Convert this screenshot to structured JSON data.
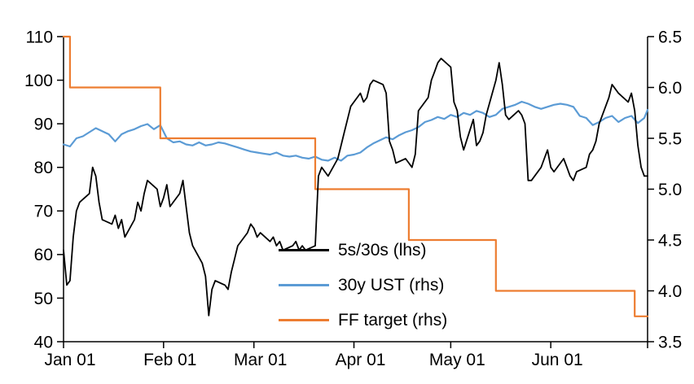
{
  "chart_data": {
    "type": "line",
    "title": "",
    "grid": false,
    "legend_position": "inside-lower-middle",
    "x_axis": {
      "unit": "day-of-year (Jan 01 = 0)",
      "domain_days": [
        0,
        181
      ],
      "ticks": [
        {
          "day": 0,
          "label": "Jan 01"
        },
        {
          "day": 31,
          "label": "Feb 01"
        },
        {
          "day": 59,
          "label": "Mar 01"
        },
        {
          "day": 90,
          "label": "Apr 01"
        },
        {
          "day": 120,
          "label": "May 01"
        },
        {
          "day": 151,
          "label": "Jun 01"
        }
      ],
      "end_tick_day": 181
    },
    "left_axis": {
      "range": [
        40,
        110
      ],
      "ticks": [
        {
          "v": 40,
          "label": "40"
        },
        {
          "v": 50,
          "label": "50"
        },
        {
          "v": 60,
          "label": "60"
        },
        {
          "v": 70,
          "label": "70"
        },
        {
          "v": 80,
          "label": "80"
        },
        {
          "v": 90,
          "label": "90"
        },
        {
          "v": 100,
          "label": "100"
        },
        {
          "v": 110,
          "label": "110"
        }
      ]
    },
    "right_axis": {
      "range": [
        3.5,
        6.5
      ],
      "ticks": [
        {
          "v": 3.5,
          "label": "3.5"
        },
        {
          "v": 4.0,
          "label": "4.0"
        },
        {
          "v": 4.5,
          "label": "4.5"
        },
        {
          "v": 5.0,
          "label": "5.0"
        },
        {
          "v": 5.5,
          "label": "5.5"
        },
        {
          "v": 6.0,
          "label": "6.0"
        },
        {
          "v": 6.5,
          "label": "6.5"
        }
      ]
    },
    "series": [
      {
        "name": "5s/30s (lhs)",
        "axis": "left",
        "color": "#000000",
        "stroke_width": 1.8,
        "points": [
          [
            0,
            61
          ],
          [
            1,
            53
          ],
          [
            2,
            54
          ],
          [
            3,
            64
          ],
          [
            4,
            70
          ],
          [
            5,
            72
          ],
          [
            8,
            74
          ],
          [
            9,
            80
          ],
          [
            10,
            78
          ],
          [
            11,
            72
          ],
          [
            12,
            68
          ],
          [
            15,
            67
          ],
          [
            16,
            69
          ],
          [
            17,
            66
          ],
          [
            18,
            68
          ],
          [
            19,
            64
          ],
          [
            22,
            68
          ],
          [
            23,
            72
          ],
          [
            24,
            70
          ],
          [
            25,
            74
          ],
          [
            26,
            77
          ],
          [
            29,
            75
          ],
          [
            30,
            71
          ],
          [
            31,
            73
          ],
          [
            32,
            76
          ],
          [
            33,
            71
          ],
          [
            36,
            74
          ],
          [
            37,
            77
          ],
          [
            38,
            71
          ],
          [
            39,
            65
          ],
          [
            40,
            62
          ],
          [
            43,
            58
          ],
          [
            44,
            55
          ],
          [
            45,
            46
          ],
          [
            46,
            52
          ],
          [
            47,
            54
          ],
          [
            50,
            53
          ],
          [
            51,
            52
          ],
          [
            52,
            56
          ],
          [
            53,
            59
          ],
          [
            54,
            62
          ],
          [
            57,
            65
          ],
          [
            58,
            67
          ],
          [
            59,
            66
          ],
          [
            60,
            64
          ],
          [
            61,
            65
          ],
          [
            64,
            63
          ],
          [
            65,
            64
          ],
          [
            66,
            62
          ],
          [
            67,
            63
          ],
          [
            68,
            61
          ],
          [
            71,
            62
          ],
          [
            72,
            63
          ],
          [
            73,
            61
          ],
          [
            74,
            62
          ],
          [
            75,
            61
          ],
          [
            78,
            62
          ],
          [
            79,
            78
          ],
          [
            80,
            80
          ],
          [
            81,
            79
          ],
          [
            82,
            78
          ],
          [
            85,
            82
          ],
          [
            86,
            85
          ],
          [
            87,
            88
          ],
          [
            88,
            91
          ],
          [
            89,
            94
          ],
          [
            92,
            97
          ],
          [
            93,
            95
          ],
          [
            94,
            96
          ],
          [
            95,
            99
          ],
          [
            96,
            100
          ],
          [
            99,
            99
          ],
          [
            100,
            97
          ],
          [
            101,
            86
          ],
          [
            102,
            84
          ],
          [
            103,
            81
          ],
          [
            106,
            82
          ],
          [
            107,
            81
          ],
          [
            108,
            80
          ],
          [
            109,
            83
          ],
          [
            110,
            93
          ],
          [
            113,
            96
          ],
          [
            114,
            100
          ],
          [
            115,
            102
          ],
          [
            116,
            104
          ],
          [
            117,
            105
          ],
          [
            120,
            103
          ],
          [
            121,
            95
          ],
          [
            122,
            93
          ],
          [
            123,
            87
          ],
          [
            124,
            84
          ],
          [
            127,
            91
          ],
          [
            128,
            85
          ],
          [
            129,
            86
          ],
          [
            130,
            88
          ],
          [
            131,
            92
          ],
          [
            134,
            100
          ],
          [
            135,
            104
          ],
          [
            136,
            99
          ],
          [
            137,
            92
          ],
          [
            138,
            91
          ],
          [
            141,
            93
          ],
          [
            142,
            92
          ],
          [
            143,
            90
          ],
          [
            144,
            77
          ],
          [
            145,
            77
          ],
          [
            148,
            80
          ],
          [
            149,
            82
          ],
          [
            150,
            84
          ],
          [
            151,
            80
          ],
          [
            152,
            79
          ],
          [
            155,
            82
          ],
          [
            156,
            80
          ],
          [
            157,
            78
          ],
          [
            158,
            77
          ],
          [
            159,
            79
          ],
          [
            162,
            80
          ],
          [
            163,
            83
          ],
          [
            164,
            84
          ],
          [
            165,
            86
          ],
          [
            166,
            90
          ],
          [
            169,
            96
          ],
          [
            170,
            99
          ],
          [
            171,
            98
          ],
          [
            172,
            97
          ],
          [
            175,
            95
          ],
          [
            176,
            97
          ],
          [
            177,
            93
          ],
          [
            178,
            85
          ],
          [
            179,
            80
          ],
          [
            180,
            78
          ],
          [
            181,
            78
          ]
        ]
      },
      {
        "name": "30y UST (rhs)",
        "axis": "right",
        "color": "#5B9BD5",
        "stroke_width": 2.2,
        "points": [
          [
            0,
            5.44
          ],
          [
            2,
            5.42
          ],
          [
            4,
            5.5
          ],
          [
            6,
            5.52
          ],
          [
            8,
            5.56
          ],
          [
            10,
            5.6
          ],
          [
            12,
            5.57
          ],
          [
            14,
            5.54
          ],
          [
            16,
            5.47
          ],
          [
            18,
            5.54
          ],
          [
            20,
            5.57
          ],
          [
            22,
            5.59
          ],
          [
            24,
            5.62
          ],
          [
            26,
            5.64
          ],
          [
            28,
            5.59
          ],
          [
            30,
            5.63
          ],
          [
            32,
            5.5
          ],
          [
            34,
            5.46
          ],
          [
            36,
            5.47
          ],
          [
            38,
            5.44
          ],
          [
            40,
            5.43
          ],
          [
            42,
            5.46
          ],
          [
            44,
            5.43
          ],
          [
            46,
            5.44
          ],
          [
            48,
            5.46
          ],
          [
            50,
            5.45
          ],
          [
            52,
            5.43
          ],
          [
            54,
            5.41
          ],
          [
            56,
            5.39
          ],
          [
            58,
            5.37
          ],
          [
            60,
            5.36
          ],
          [
            62,
            5.35
          ],
          [
            64,
            5.34
          ],
          [
            66,
            5.36
          ],
          [
            68,
            5.33
          ],
          [
            70,
            5.32
          ],
          [
            72,
            5.33
          ],
          [
            74,
            5.31
          ],
          [
            76,
            5.3
          ],
          [
            78,
            5.32
          ],
          [
            80,
            5.29
          ],
          [
            82,
            5.28
          ],
          [
            84,
            5.31
          ],
          [
            86,
            5.28
          ],
          [
            88,
            5.33
          ],
          [
            90,
            5.34
          ],
          [
            92,
            5.36
          ],
          [
            94,
            5.41
          ],
          [
            96,
            5.45
          ],
          [
            98,
            5.48
          ],
          [
            100,
            5.51
          ],
          [
            102,
            5.49
          ],
          [
            104,
            5.53
          ],
          [
            106,
            5.56
          ],
          [
            108,
            5.58
          ],
          [
            110,
            5.61
          ],
          [
            112,
            5.66
          ],
          [
            114,
            5.68
          ],
          [
            116,
            5.71
          ],
          [
            118,
            5.69
          ],
          [
            120,
            5.73
          ],
          [
            122,
            5.71
          ],
          [
            124,
            5.75
          ],
          [
            126,
            5.73
          ],
          [
            128,
            5.77
          ],
          [
            130,
            5.75
          ],
          [
            132,
            5.71
          ],
          [
            134,
            5.73
          ],
          [
            136,
            5.79
          ],
          [
            138,
            5.81
          ],
          [
            140,
            5.83
          ],
          [
            142,
            5.86
          ],
          [
            144,
            5.84
          ],
          [
            146,
            5.81
          ],
          [
            148,
            5.79
          ],
          [
            150,
            5.81
          ],
          [
            152,
            5.83
          ],
          [
            154,
            5.84
          ],
          [
            156,
            5.83
          ],
          [
            158,
            5.81
          ],
          [
            160,
            5.72
          ],
          [
            162,
            5.7
          ],
          [
            164,
            5.63
          ],
          [
            166,
            5.66
          ],
          [
            168,
            5.7
          ],
          [
            170,
            5.72
          ],
          [
            172,
            5.66
          ],
          [
            174,
            5.7
          ],
          [
            176,
            5.72
          ],
          [
            178,
            5.65
          ],
          [
            180,
            5.7
          ],
          [
            181,
            5.78
          ]
        ]
      },
      {
        "name": "FF target (rhs)",
        "axis": "right",
        "color": "#ED7D31",
        "stroke_width": 2.2,
        "points": [
          [
            0,
            6.5
          ],
          [
            2,
            6.5
          ],
          [
            2,
            6.0
          ],
          [
            30,
            6.0
          ],
          [
            30,
            5.5
          ],
          [
            78,
            5.5
          ],
          [
            78,
            5.0
          ],
          [
            107,
            5.0
          ],
          [
            107,
            4.5
          ],
          [
            134,
            4.5
          ],
          [
            134,
            4.0
          ],
          [
            177,
            4.0
          ],
          [
            177,
            3.75
          ],
          [
            181,
            3.75
          ]
        ]
      }
    ]
  }
}
